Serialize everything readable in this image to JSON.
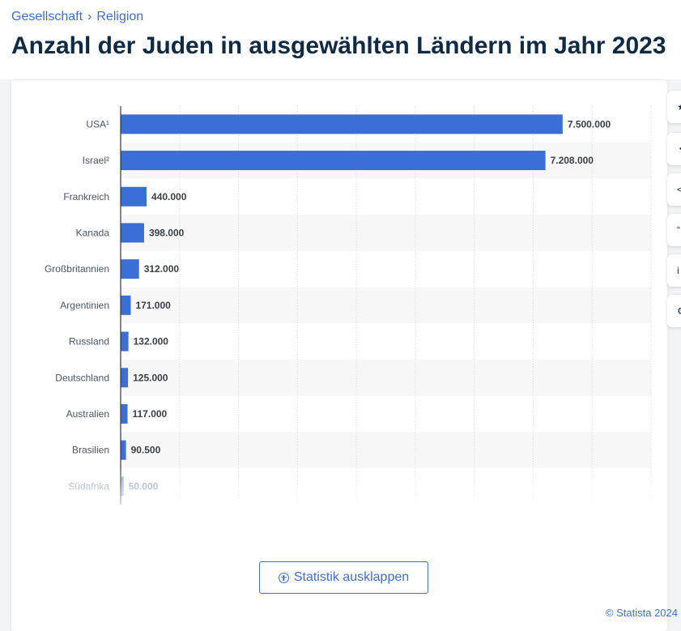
{
  "breadcrumb": {
    "items": [
      "Gesellschaft",
      "Religion"
    ],
    "separator": "›"
  },
  "page_title": "Anzahl der Juden in ausgewählten Ländern im Jahr 2023",
  "expand_button": {
    "label": "Statistik ausklappen",
    "icon": "plus-circle-icon"
  },
  "credit": "© Statista 2024",
  "side_tools": [
    "star-icon",
    "bell-icon",
    "share-icon",
    "quote-icon",
    "info-icon",
    "settings-icon"
  ],
  "colors": {
    "bar": "#3b6fd6",
    "accent": "#3b6fd6",
    "title": "#0f2a44"
  },
  "chart_data": {
    "type": "bar",
    "orientation": "horizontal",
    "categories": [
      "USA¹",
      "Israel²",
      "Frankreich",
      "Kanada",
      "Großbritannien",
      "Argentinien",
      "Russland",
      "Deutschland",
      "Australien",
      "Brasilien",
      "Südafrika"
    ],
    "values": [
      7500000,
      7208000,
      440000,
      398000,
      312000,
      171000,
      132000,
      125000,
      117000,
      90500,
      50000
    ],
    "value_labels": [
      "7.500.000",
      "7.208.000",
      "440.000",
      "398.000",
      "312.000",
      "171.000",
      "132.000",
      "125.000",
      "117.000",
      "90.500",
      "50.000"
    ],
    "xlim": [
      0,
      9000000
    ],
    "grid": true,
    "title": "",
    "xlabel": "",
    "ylabel": ""
  }
}
